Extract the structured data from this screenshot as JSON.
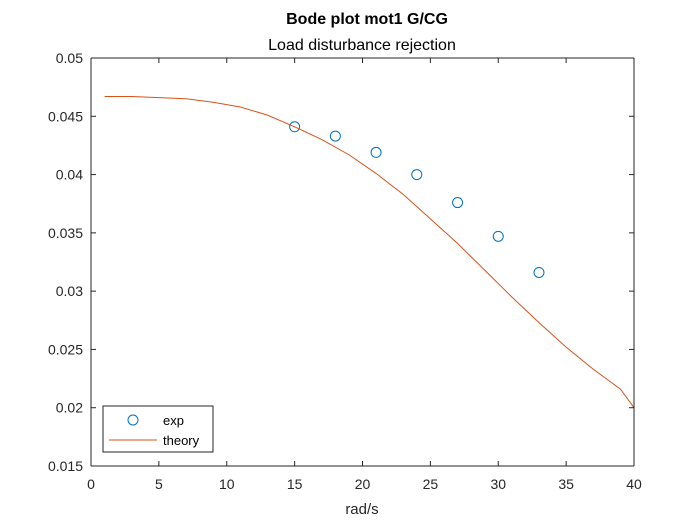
{
  "chart_data": {
    "type": "line",
    "title": "Bode plot mot1 G/CG",
    "subtitle": "Load disturbance rejection",
    "xlabel": "rad/s",
    "ylabel": "",
    "xlim": [
      0,
      40
    ],
    "ylim": [
      0.015,
      0.05
    ],
    "xticks": [
      0,
      5,
      10,
      15,
      20,
      25,
      30,
      35,
      40
    ],
    "yticks": [
      0.015,
      0.02,
      0.025,
      0.03,
      0.035,
      0.04,
      0.045,
      0.05
    ],
    "xtick_labels": [
      "0",
      "5",
      "10",
      "15",
      "20",
      "25",
      "30",
      "35",
      "40"
    ],
    "ytick_labels": [
      "0.015",
      "0.02",
      "0.025",
      "0.03",
      "0.035",
      "0.04",
      "0.045",
      "0.05"
    ],
    "grid": false,
    "legend_position": "bottom-left",
    "series": [
      {
        "name": "exp",
        "style": "markers",
        "marker": "circle",
        "color": "#0072BD",
        "x": [
          15,
          18,
          21,
          24,
          27,
          30,
          33
        ],
        "y": [
          0.0441,
          0.0433,
          0.0419,
          0.04,
          0.0376,
          0.0347,
          0.0316
        ]
      },
      {
        "name": "theory",
        "style": "line",
        "color": "#D95319",
        "x": [
          1,
          3,
          5,
          7,
          9,
          11,
          13,
          15,
          17,
          19,
          21,
          23,
          25,
          27,
          29,
          31,
          33,
          35,
          37,
          39,
          40
        ],
        "y": [
          0.0467,
          0.0467,
          0.0466,
          0.0465,
          0.0462,
          0.0458,
          0.0451,
          0.0441,
          0.043,
          0.0417,
          0.0401,
          0.0383,
          0.0362,
          0.0341,
          0.0318,
          0.0295,
          0.0273,
          0.0252,
          0.0233,
          0.0216,
          0.02
        ]
      }
    ]
  }
}
